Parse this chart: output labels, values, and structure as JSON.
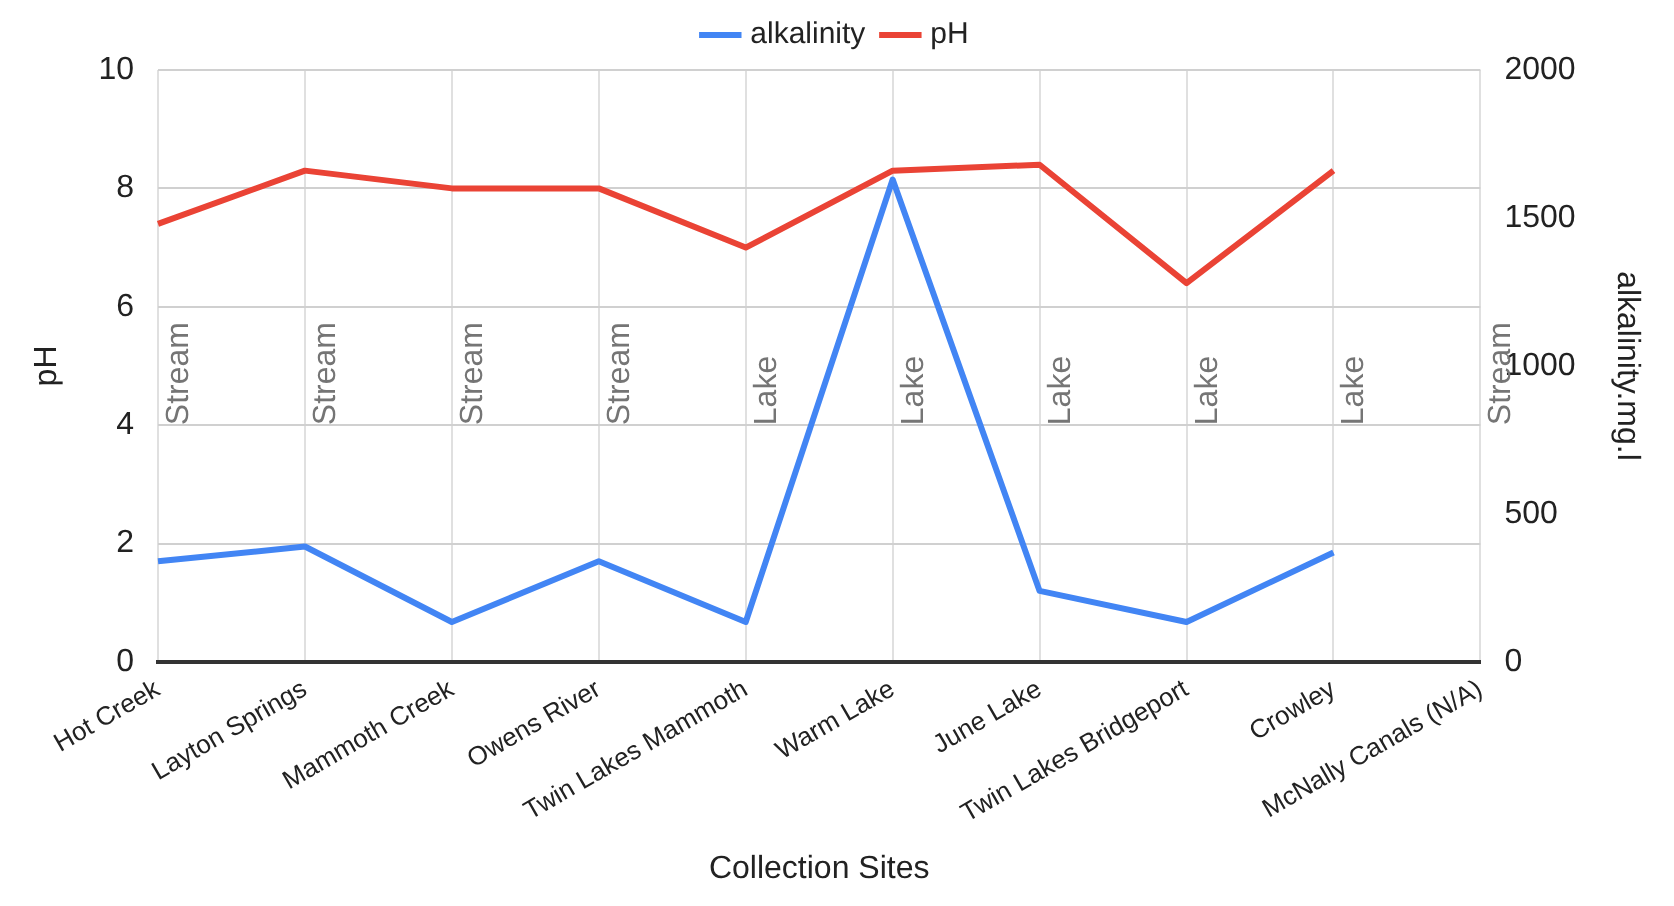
{
  "chart_data": {
    "type": "line",
    "xlabel": "Collection Sites",
    "ylabel": "pH",
    "y2label": "alkalinity.mg.l",
    "categories": [
      "Hot Creek",
      "Layton Springs",
      "Mammoth Creek",
      "Owens River",
      "Twin Lakes Mammoth",
      "Warm Lake",
      "June Lake",
      "Twin Lakes Bridgeport",
      "Crowley",
      "McNally Canals (N/A)"
    ],
    "series": [
      {
        "name": "alkalinity",
        "color": "#4285f4",
        "axis": "y2",
        "values": [
          340,
          390,
          135,
          340,
          135,
          1630,
          240,
          135,
          370,
          null
        ]
      },
      {
        "name": "pH",
        "color": "#ea4335",
        "values": [
          7.4,
          8.3,
          8.0,
          8.0,
          7.0,
          8.3,
          8.4,
          6.4,
          8.3,
          null
        ]
      }
    ],
    "ylim": [
      0,
      10
    ],
    "yticks": [
      0,
      2,
      4,
      6,
      8,
      10
    ],
    "y2lim": [
      0,
      2000
    ],
    "y2ticks": [
      0,
      500,
      1000,
      1500,
      2000
    ],
    "grid": true,
    "legend": "top",
    "marker": "none",
    "line_style": "solid",
    "annotations": [
      "Stream",
      "Stream",
      "Stream",
      "Stream",
      "Lake",
      "Lake",
      "Lake",
      "Lake",
      "Lake",
      "Stream"
    ]
  }
}
